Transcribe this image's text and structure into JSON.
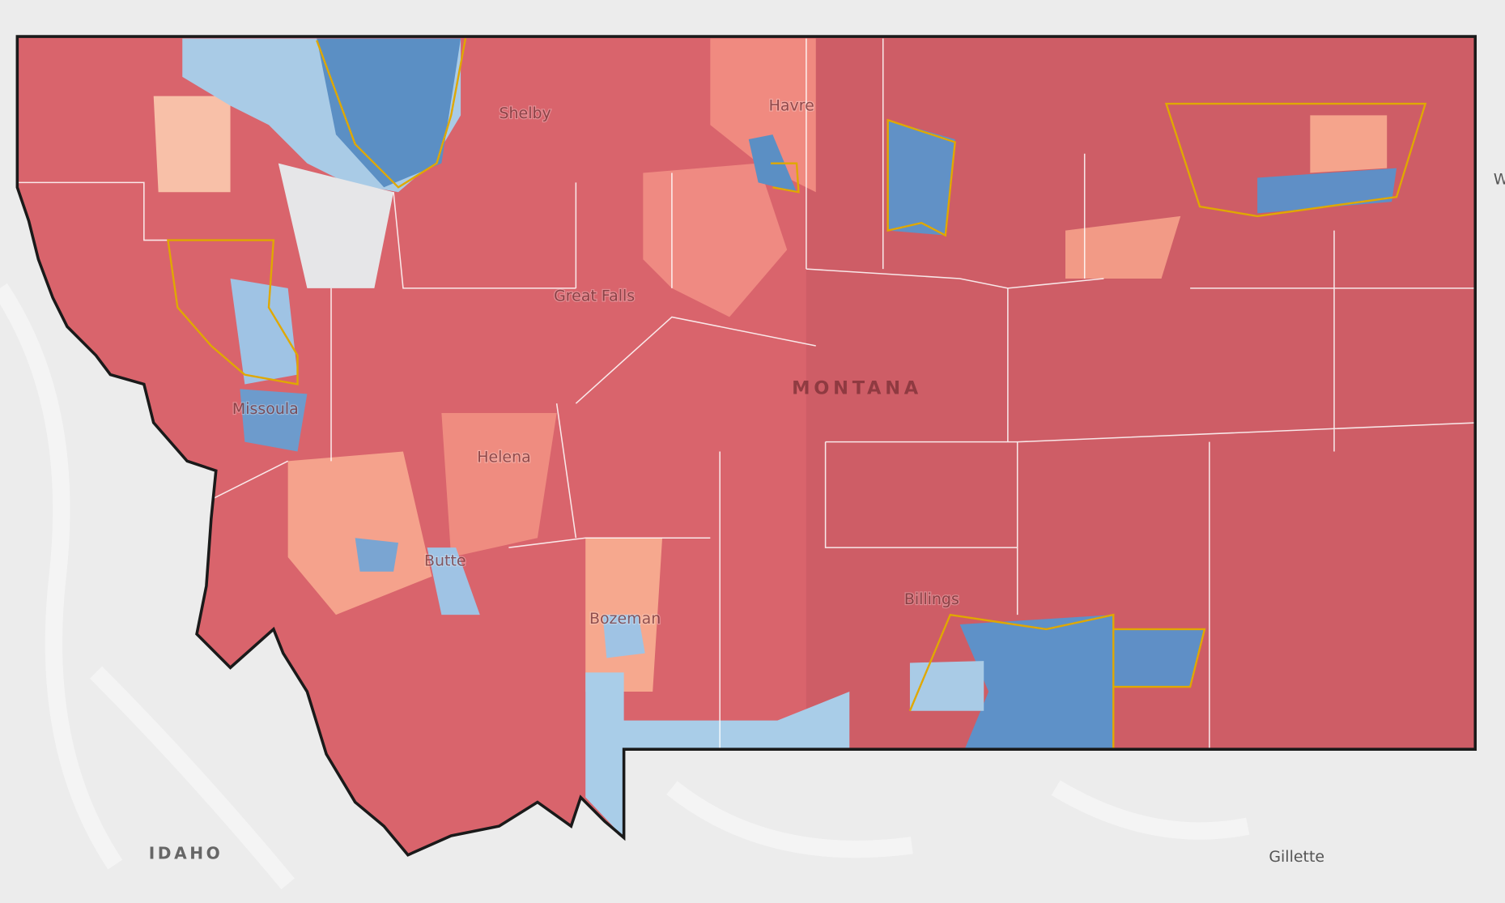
{
  "map": {
    "labels": {
      "state": "MONTANA",
      "neighbor": "IDAHO",
      "cities": [
        "Shelby",
        "Havre",
        "Great Falls",
        "Missoula",
        "Helena",
        "Butte",
        "Bozeman",
        "Billings",
        "Gillette"
      ],
      "edge": "W"
    }
  }
}
